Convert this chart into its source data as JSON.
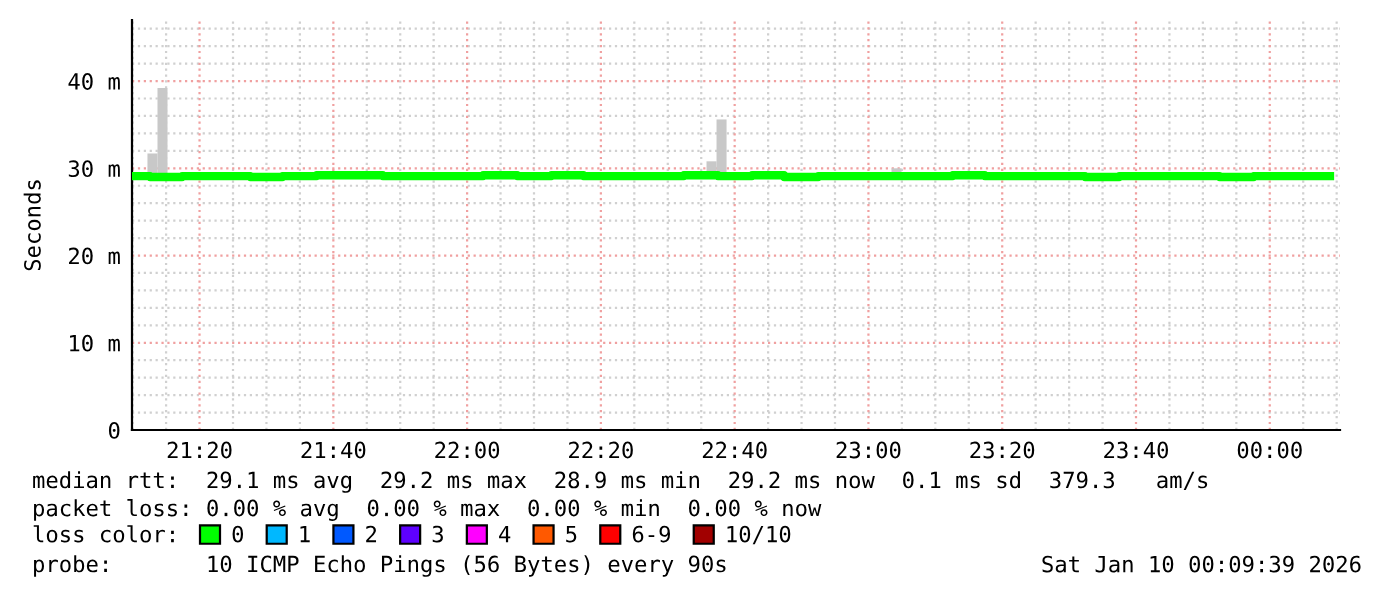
{
  "chart_data": {
    "type": "step",
    "ylabel": "Seconds",
    "xlim": [
      21.165,
      24.175
    ],
    "ylim": [
      0,
      47
    ],
    "xticks": [
      {
        "value": 21.3333,
        "label": "21:20"
      },
      {
        "value": 21.6667,
        "label": "21:40"
      },
      {
        "value": 22,
        "label": "22:00"
      },
      {
        "value": 22.3333,
        "label": "22:20"
      },
      {
        "value": 22.6667,
        "label": "22:40"
      },
      {
        "value": 23,
        "label": "23:00"
      },
      {
        "value": 23.3333,
        "label": "23:20"
      },
      {
        "value": 23.6667,
        "label": "23:40"
      },
      {
        "value": 24,
        "label": "00:00"
      }
    ],
    "yticks": [
      0,
      {
        "value": 10,
        "label": "10 m"
      },
      {
        "value": 20,
        "label": "20 m"
      },
      {
        "value": 30,
        "label": "30 m"
      },
      {
        "value": 40,
        "label": "40 m"
      }
    ],
    "grid": true,
    "legend": "bottom",
    "legend_title": "loss color:",
    "line_style": "solid",
    "marker": "none",
    "series": [
      {
        "type": "bar",
        "color": "#c8c8c8",
        "x": [
          21.216,
          21.241,
          22.609,
          22.634,
          23.07
        ],
        "base": [
          28.9,
          28.9,
          28.9,
          28.9,
          28.9
        ],
        "values": [
          2.8,
          10.3,
          1.9,
          6.7,
          1.1
        ]
      },
      {
        "name": "0",
        "color": "#00ff00",
        "x": [
          21.17,
          21.25,
          21.33,
          21.42,
          21.5,
          21.58,
          21.67,
          21.75,
          21.83,
          21.92,
          22.0,
          22.08,
          22.17,
          22.25,
          22.33,
          22.42,
          22.5,
          22.58,
          22.67,
          22.75,
          22.83,
          22.92,
          23.0,
          23.08,
          23.17,
          23.25,
          23.33,
          23.42,
          23.5,
          23.58,
          23.67,
          23.75,
          23.83,
          23.92,
          24.0,
          24.08,
          24.15
        ],
        "values": [
          29.1,
          29.0,
          29.1,
          29.1,
          29.0,
          29.1,
          29.2,
          29.2,
          29.1,
          29.1,
          29.1,
          29.2,
          29.1,
          29.2,
          29.1,
          29.1,
          29.1,
          29.2,
          29.1,
          29.2,
          29.0,
          29.1,
          29.1,
          29.1,
          29.1,
          29.2,
          29.1,
          29.1,
          29.1,
          29.0,
          29.1,
          29.1,
          29.1,
          29.0,
          29.1,
          29.1,
          29.1
        ]
      },
      {
        "name": "1",
        "color": "#00b8ff"
      },
      {
        "name": "2",
        "color": "#0059ff"
      },
      {
        "name": "3",
        "color": "#5e00ff"
      },
      {
        "name": "4",
        "color": "#ff00ff"
      },
      {
        "name": "5",
        "color": "#ff5900"
      },
      {
        "name": "6-9",
        "color": "#ff0000"
      },
      {
        "name": "10/10",
        "color": "#a10000"
      }
    ],
    "annotations": [
      "median rtt:  29.1 ms avg  29.2 ms max  28.9 ms min  29.2 ms now  0.1 ms sd  379.3   am/s",
      "packet loss: 0.00 % avg  0.00 % max  0.00 % min  0.00 % now",
      "probe:       10 ICMP Echo Pings (56 Bytes) every 90s",
      "Sat Jan 10 00:09:39 2026"
    ]
  }
}
